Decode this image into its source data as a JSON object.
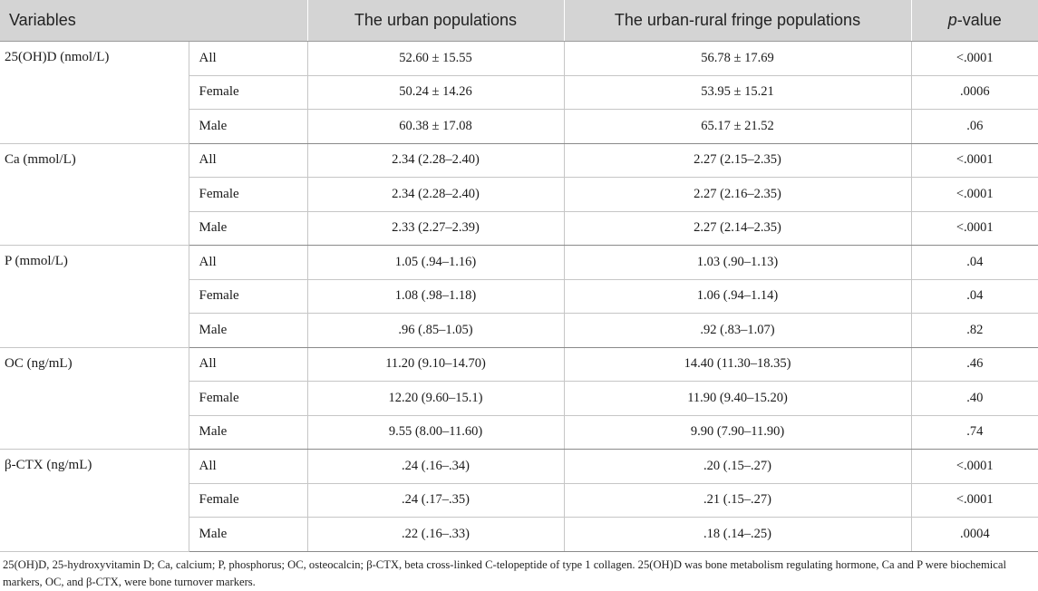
{
  "table": {
    "headers": {
      "variables": "Variables",
      "urban": "The urban populations",
      "fringe": "The urban-rural fringe populations",
      "p_italic": "p",
      "p_rest": "-value"
    },
    "groups": [
      {
        "label": "25(OH)D (nmol/L)",
        "rows": [
          {
            "sub": "All",
            "urban": "52.60 ± 15.55",
            "fringe": "56.78 ± 17.69",
            "p": "<.0001"
          },
          {
            "sub": "Female",
            "urban": "50.24 ± 14.26",
            "fringe": "53.95 ± 15.21",
            "p": ".0006"
          },
          {
            "sub": "Male",
            "urban": "60.38 ± 17.08",
            "fringe": "65.17 ± 21.52",
            "p": ".06"
          }
        ]
      },
      {
        "label": "Ca (mmol/L)",
        "rows": [
          {
            "sub": "All",
            "urban": "2.34 (2.28–2.40)",
            "fringe": "2.27 (2.15–2.35)",
            "p": "<.0001"
          },
          {
            "sub": "Female",
            "urban": "2.34 (2.28–2.40)",
            "fringe": "2.27 (2.16–2.35)",
            "p": "<.0001"
          },
          {
            "sub": "Male",
            "urban": "2.33 (2.27–2.39)",
            "fringe": "2.27 (2.14–2.35)",
            "p": "<.0001"
          }
        ]
      },
      {
        "label": "P (mmol/L)",
        "rows": [
          {
            "sub": "All",
            "urban": "1.05 (.94–1.16)",
            "fringe": "1.03 (.90–1.13)",
            "p": ".04"
          },
          {
            "sub": "Female",
            "urban": "1.08 (.98–1.18)",
            "fringe": "1.06 (.94–1.14)",
            "p": ".04"
          },
          {
            "sub": "Male",
            "urban": ".96 (.85–1.05)",
            "fringe": ".92 (.83–1.07)",
            "p": ".82"
          }
        ]
      },
      {
        "label": "OC (ng/mL)",
        "rows": [
          {
            "sub": "All",
            "urban": "11.20 (9.10–14.70)",
            "fringe": "14.40 (11.30–18.35)",
            "p": ".46"
          },
          {
            "sub": "Female",
            "urban": "12.20 (9.60–15.1)",
            "fringe": "11.90 (9.40–15.20)",
            "p": ".40"
          },
          {
            "sub": "Male",
            "urban": "9.55 (8.00–11.60)",
            "fringe": "9.90 (7.90–11.90)",
            "p": ".74"
          }
        ]
      },
      {
        "label": "β-CTX (ng/mL)",
        "rows": [
          {
            "sub": "All",
            "urban": ".24 (.16–.34)",
            "fringe": ".20 (.15–.27)",
            "p": "<.0001"
          },
          {
            "sub": "Female",
            "urban": ".24 (.17–.35)",
            "fringe": ".21 (.15–.27)",
            "p": "<.0001"
          },
          {
            "sub": "Male",
            "urban": ".22 (.16–.33)",
            "fringe": ".18 (.14–.25)",
            "p": ".0004"
          }
        ]
      }
    ]
  },
  "footnote": "25(OH)D, 25-hydroxyvitamin D; Ca, calcium; P, phosphorus; OC, osteocalcin; β-CTX, beta cross-linked C-telopeptide of type 1 collagen. 25(OH)D was bone metabolism regulating hormone, Ca and P were biochemical markers, OC, and β-CTX, were bone turnover markers."
}
